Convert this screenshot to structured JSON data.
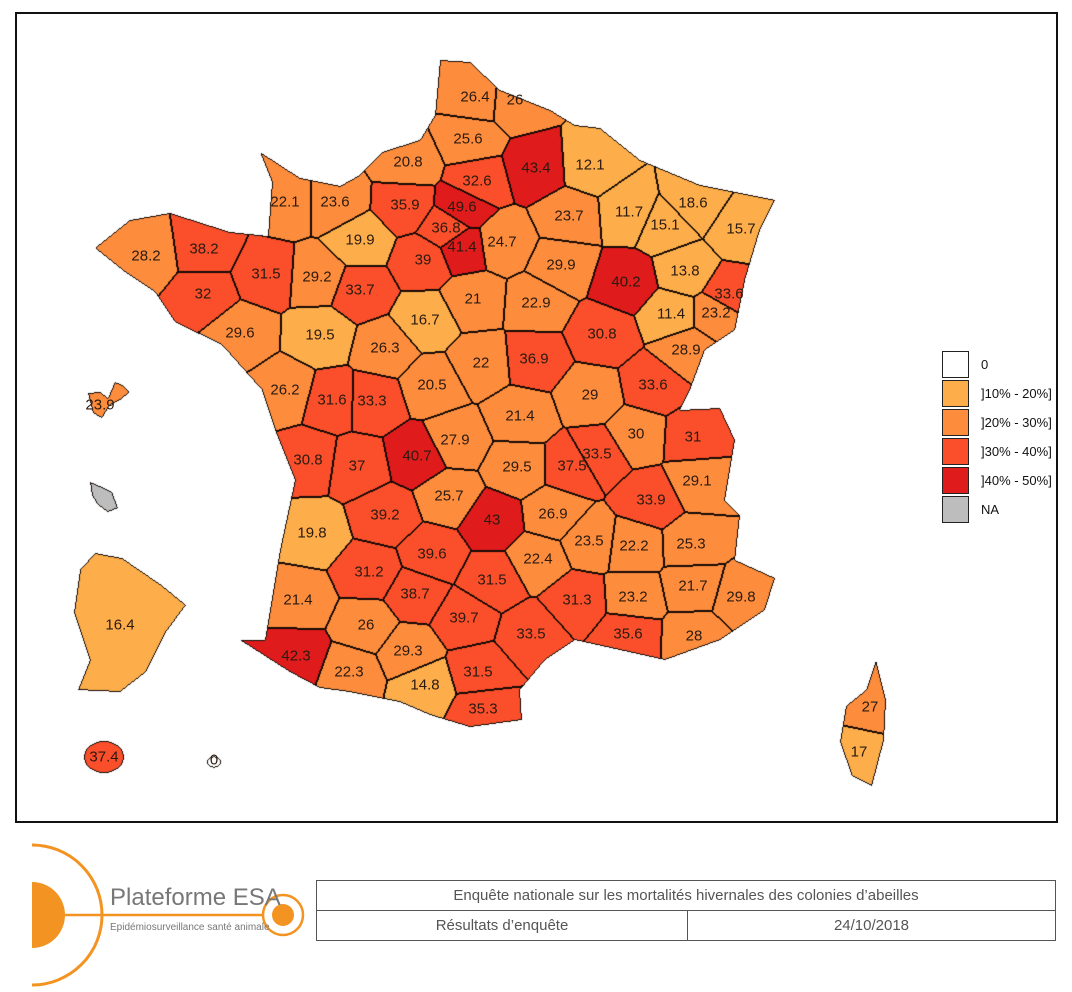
{
  "legend": {
    "items": [
      {
        "label": "0",
        "color": "#ffffff"
      },
      {
        "label": "]10% - 20%]",
        "color": "#fdae4b"
      },
      {
        "label": "]20% - 30%]",
        "color": "#fd8d3c"
      },
      {
        "label": "]30% - 40%]",
        "color": "#fa4f2a"
      },
      {
        "label": "]40% - 50%]",
        "color": "#e01b1c"
      },
      {
        "label": "NA",
        "color": "#bdbdbd"
      }
    ]
  },
  "departments": [
    {
      "label": "26.4",
      "value": 26.4
    },
    {
      "label": "26",
      "value": 26
    },
    {
      "label": "25.6",
      "value": 25.6
    },
    {
      "label": "20.8",
      "value": 20.8
    },
    {
      "label": "32.6",
      "value": 32.6
    },
    {
      "label": "43.4",
      "value": 43.4
    },
    {
      "label": "12.1",
      "value": 12.1
    },
    {
      "label": "22.1",
      "value": 22.1
    },
    {
      "label": "23.6",
      "value": 23.6
    },
    {
      "label": "35.9",
      "value": 35.9
    },
    {
      "label": "49.6",
      "value": 49.6
    },
    {
      "label": "36.8",
      "value": 36.8
    },
    {
      "label": "41.4",
      "value": 41.4
    },
    {
      "label": "24.7",
      "value": 24.7
    },
    {
      "label": "23.7",
      "value": 23.7
    },
    {
      "label": "11.7",
      "value": 11.7
    },
    {
      "label": "18.6",
      "value": 18.6
    },
    {
      "label": "15.1",
      "value": 15.1
    },
    {
      "label": "15.7",
      "value": 15.7
    },
    {
      "label": "28.2",
      "value": 28.2
    },
    {
      "label": "38.2",
      "value": 38.2
    },
    {
      "label": "19.9",
      "value": 19.9
    },
    {
      "label": "39",
      "value": 39
    },
    {
      "label": "31.5",
      "value": 31.5
    },
    {
      "label": "29.2",
      "value": 29.2
    },
    {
      "label": "33.7",
      "value": 33.7
    },
    {
      "label": "32",
      "value": 32
    },
    {
      "label": "21",
      "value": 21
    },
    {
      "label": "22.9",
      "value": 22.9
    },
    {
      "label": "29.9",
      "value": 29.9
    },
    {
      "label": "40.2",
      "value": 40.2
    },
    {
      "label": "13.8",
      "value": 13.8
    },
    {
      "label": "33.6",
      "value": 33.6
    },
    {
      "label": "11.4",
      "value": 11.4
    },
    {
      "label": "23.2",
      "value": 23.2
    },
    {
      "label": "29.6",
      "value": 29.6
    },
    {
      "label": "19.5",
      "value": 19.5
    },
    {
      "label": "16.7",
      "value": 16.7
    },
    {
      "label": "26.3",
      "value": 26.3
    },
    {
      "label": "22",
      "value": 22
    },
    {
      "label": "36.9",
      "value": 36.9
    },
    {
      "label": "30.8",
      "value": 30.8
    },
    {
      "label": "28.9",
      "value": 28.9
    },
    {
      "label": "20.5",
      "value": 20.5
    },
    {
      "label": "33.6",
      "value": 33.6
    },
    {
      "label": "26.2",
      "value": 26.2
    },
    {
      "label": "31.6",
      "value": 31.6
    },
    {
      "label": "33.3",
      "value": 33.3
    },
    {
      "label": "21.4",
      "value": 21.4
    },
    {
      "label": "29",
      "value": 29
    },
    {
      "label": "30",
      "value": 30
    },
    {
      "label": "31",
      "value": 31
    },
    {
      "label": "30.8",
      "value": 30.8
    },
    {
      "label": "37",
      "value": 37
    },
    {
      "label": "40.7",
      "value": 40.7
    },
    {
      "label": "27.9",
      "value": 27.9
    },
    {
      "label": "29.5",
      "value": 29.5
    },
    {
      "label": "37.5",
      "value": 37.5
    },
    {
      "label": "33.5",
      "value": 33.5
    },
    {
      "label": "29.1",
      "value": 29.1
    },
    {
      "label": "33.9",
      "value": 33.9
    },
    {
      "label": "25.7",
      "value": 25.7
    },
    {
      "label": "43",
      "value": 43
    },
    {
      "label": "26.9",
      "value": 26.9
    },
    {
      "label": "19.8",
      "value": 19.8
    },
    {
      "label": "39.2",
      "value": 39.2
    },
    {
      "label": "23.5",
      "value": 23.5
    },
    {
      "label": "22.2",
      "value": 22.2
    },
    {
      "label": "25.3",
      "value": 25.3
    },
    {
      "label": "39.6",
      "value": 39.6
    },
    {
      "label": "22.4",
      "value": 22.4
    },
    {
      "label": "31.2",
      "value": 31.2
    },
    {
      "label": "31.5",
      "value": 31.5
    },
    {
      "label": "38.7",
      "value": 38.7
    },
    {
      "label": "21.7",
      "value": 21.7
    },
    {
      "label": "29.8",
      "value": 29.8
    },
    {
      "label": "31.3",
      "value": 31.3
    },
    {
      "label": "23.2",
      "value": 23.2
    },
    {
      "label": "21.4",
      "value": 21.4
    },
    {
      "label": "26",
      "value": 26
    },
    {
      "label": "39.7",
      "value": 39.7
    },
    {
      "label": "33.5",
      "value": 33.5
    },
    {
      "label": "35.6",
      "value": 35.6
    },
    {
      "label": "28",
      "value": 28
    },
    {
      "label": "42.3",
      "value": 42.3
    },
    {
      "label": "22.3",
      "value": 22.3
    },
    {
      "label": "29.3",
      "value": 29.3
    },
    {
      "label": "14.8",
      "value": 14.8
    },
    {
      "label": "31.5",
      "value": 31.5
    },
    {
      "label": "35.3",
      "value": 35.3
    }
  ],
  "corsica": [
    {
      "label": "27",
      "value": 27
    },
    {
      "label": "17",
      "value": 17
    }
  ],
  "overseas": [
    {
      "label": "23.9",
      "value": 23.9
    },
    {
      "label": "",
      "value": null
    },
    {
      "label": "16.4",
      "value": 16.4
    },
    {
      "label": "37.4",
      "value": 37.4
    },
    {
      "label": "0",
      "value": 0
    }
  ],
  "footer": {
    "logo_title": "Plateforme ESA",
    "logo_subtitle": "Epidémiosurveillance santé animale",
    "survey_title": "Enquête nationale sur les mortalités hivernales des colonies d’abeilles",
    "doc_type": "Résultats d’enquête",
    "date": "24/10/2018"
  }
}
